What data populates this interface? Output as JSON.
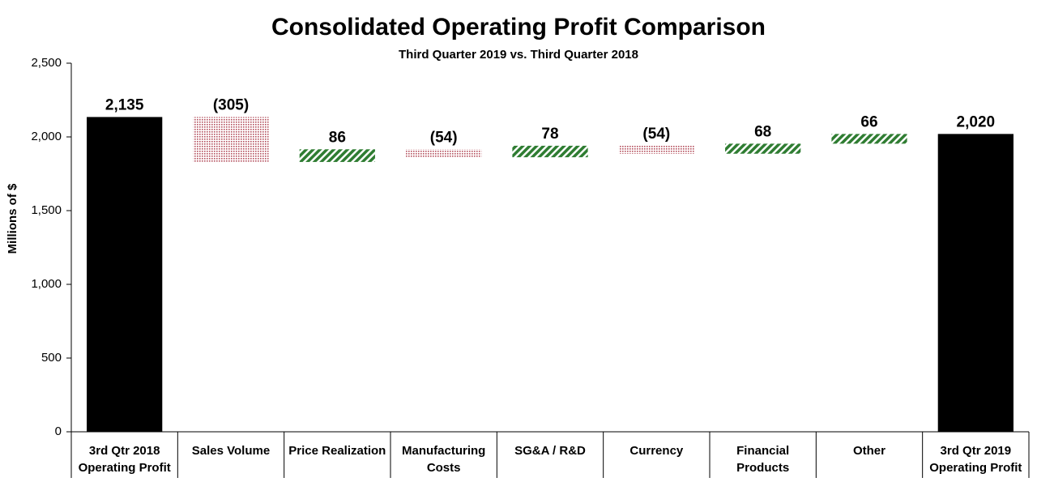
{
  "chart_data": {
    "type": "waterfall",
    "title": "Consolidated Operating Profit Comparison",
    "subtitle": "Third Quarter 2019 vs. Third Quarter 2018",
    "y_label": "Millions of $",
    "categories": [
      "3rd Qtr 2018\nOperating Profit",
      "Sales Volume",
      "Price Realization",
      "Manufacturing\nCosts",
      "SG&A / R&D",
      "Currency",
      "Financial\nProducts",
      "Other",
      "3rd Qtr 2019\nOperating Profit"
    ],
    "values": [
      2135,
      -305,
      86,
      -54,
      78,
      -54,
      68,
      66,
      2020
    ],
    "value_labels": [
      "2,135",
      "(305)",
      "86",
      "(54)",
      "78",
      "(54)",
      "68",
      "66",
      "2,020"
    ],
    "colors": {
      "total": "#000000",
      "increase": "#2f7d32",
      "decrease": "#b4505e"
    },
    "ylim": [
      0,
      2500
    ],
    "yticks": [
      0,
      500,
      {
        "value": 1000,
        "label": "1,000"
      },
      {
        "value": 1500,
        "label": "1,500"
      },
      {
        "value": 2000,
        "label": "2,000"
      },
      {
        "value": 2500,
        "label": "2,500"
      }
    ]
  }
}
